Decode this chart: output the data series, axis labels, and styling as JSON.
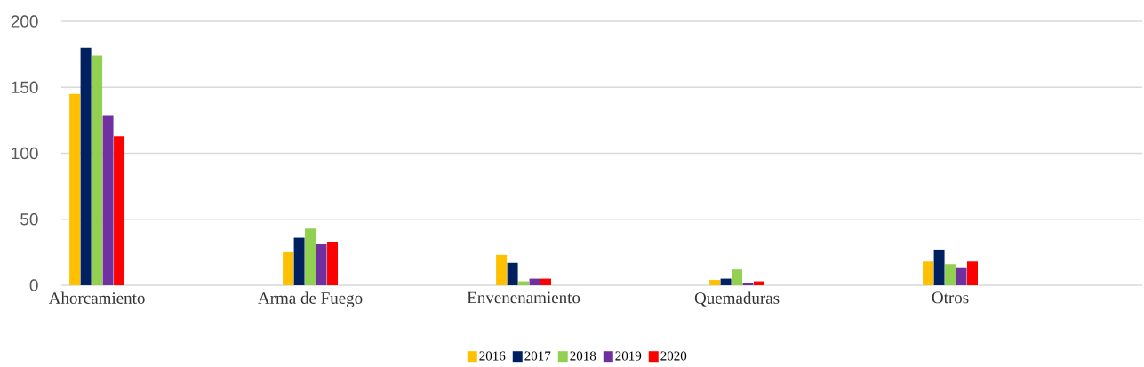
{
  "chart_data": {
    "type": "bar",
    "categories": [
      "Ahorcamiento",
      "Arma de Fuego",
      "Envenenamiento",
      "Quemaduras",
      "Otros"
    ],
    "series": [
      {
        "name": "2016",
        "color": "#ffc000",
        "values": [
          145,
          25,
          23,
          4,
          18
        ]
      },
      {
        "name": "2017",
        "color": "#002060",
        "values": [
          180,
          36,
          17,
          5,
          27
        ]
      },
      {
        "name": "2018",
        "color": "#92d050",
        "values": [
          174,
          43,
          3,
          12,
          16
        ]
      },
      {
        "name": "2019",
        "color": "#7030a0",
        "values": [
          129,
          31,
          5,
          2,
          13
        ]
      },
      {
        "name": "2020",
        "color": "#ff0000",
        "values": [
          113,
          33,
          5,
          3,
          18
        ]
      }
    ],
    "ylim": [
      0,
      200
    ],
    "yticks": [
      0,
      50,
      100,
      150,
      200
    ],
    "grid": "y",
    "legend": "bottom"
  }
}
